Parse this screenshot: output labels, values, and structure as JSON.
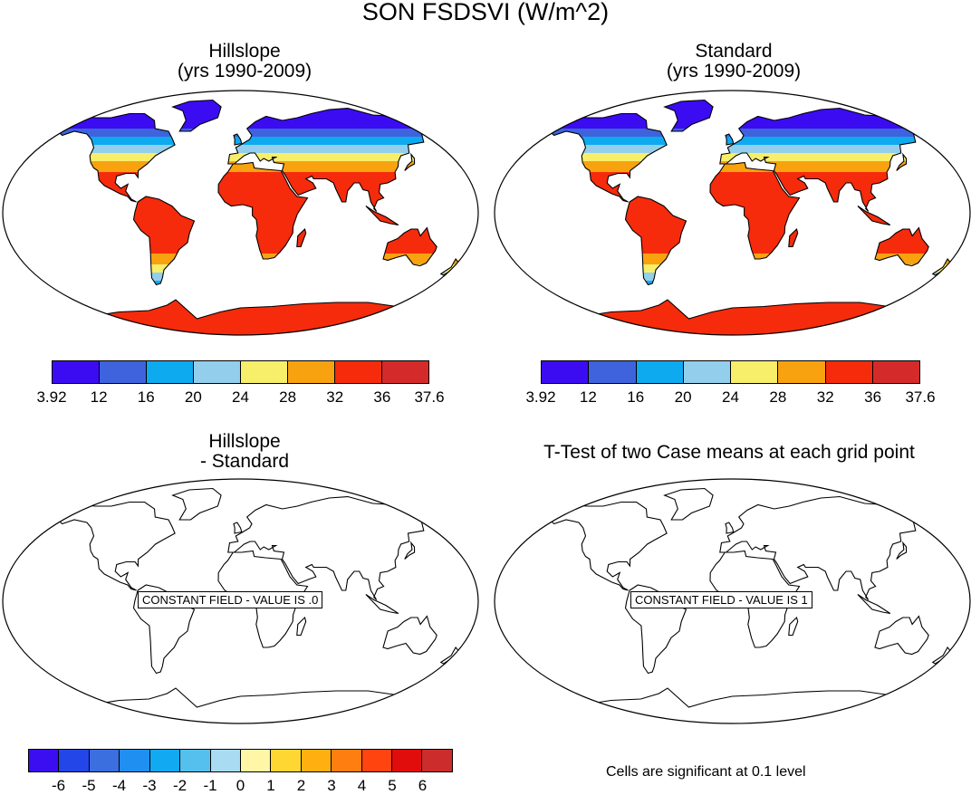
{
  "title": "SON FSDSVI (W/m^2)",
  "panels": [
    {
      "title_line1": "Hillslope",
      "title_line2": "(yrs 1990-2009)"
    },
    {
      "title_line1": "Standard",
      "title_line2": "(yrs 1990-2009)"
    },
    {
      "title_line1": "Hillslope",
      "title_line2": "- Standard",
      "constant_field": "CONSTANT FIELD - VALUE IS .0"
    },
    {
      "title_line1": "T-Test of two Case means at each grid point",
      "constant_field": "CONSTANT FIELD - VALUE IS 1"
    }
  ],
  "colorbar_main": {
    "labels": [
      "3.92",
      "12",
      "16",
      "20",
      "24",
      "28",
      "32",
      "36",
      "37.6"
    ],
    "colors": [
      "#3b0cf2",
      "#3e63dc",
      "#0eaaf0",
      "#93cfec",
      "#f7ee6a",
      "#f9a20f",
      "#f52b0b",
      "#d42a2a"
    ]
  },
  "colorbar_diff": {
    "labels": [
      "-6",
      "-5",
      "-4",
      "-3",
      "-2",
      "-1",
      "0",
      "1",
      "2",
      "3",
      "4",
      "5",
      "6"
    ],
    "colors": [
      "#3a0ef0",
      "#2346e8",
      "#3b6fe0",
      "#1f8ff2",
      "#11a9f2",
      "#55c0ee",
      "#a9dcf2",
      "#fff6a6",
      "#ffd733",
      "#ffb010",
      "#ff7e10",
      "#ff4410",
      "#e10c0c",
      "#cc2c2c"
    ]
  },
  "significance_note": "Cells are significant at 0.1 level"
}
